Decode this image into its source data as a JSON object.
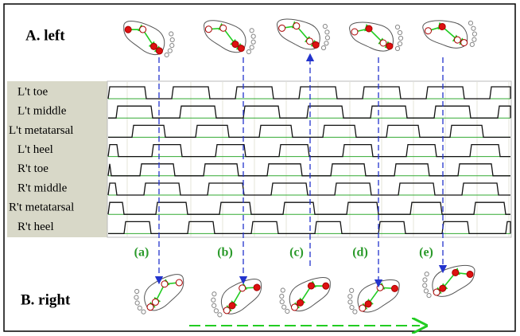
{
  "section_a": "A. left",
  "section_b": "B. right",
  "channels": [
    "L't toe",
    "L't middle",
    "L't metatarsal",
    "L't heel",
    "R't toe",
    "R't middle",
    "R't metatarsal",
    "R't heel"
  ],
  "phases": [
    "(a)",
    "(b)",
    "(c)",
    "(d)",
    "(e)"
  ]
}
